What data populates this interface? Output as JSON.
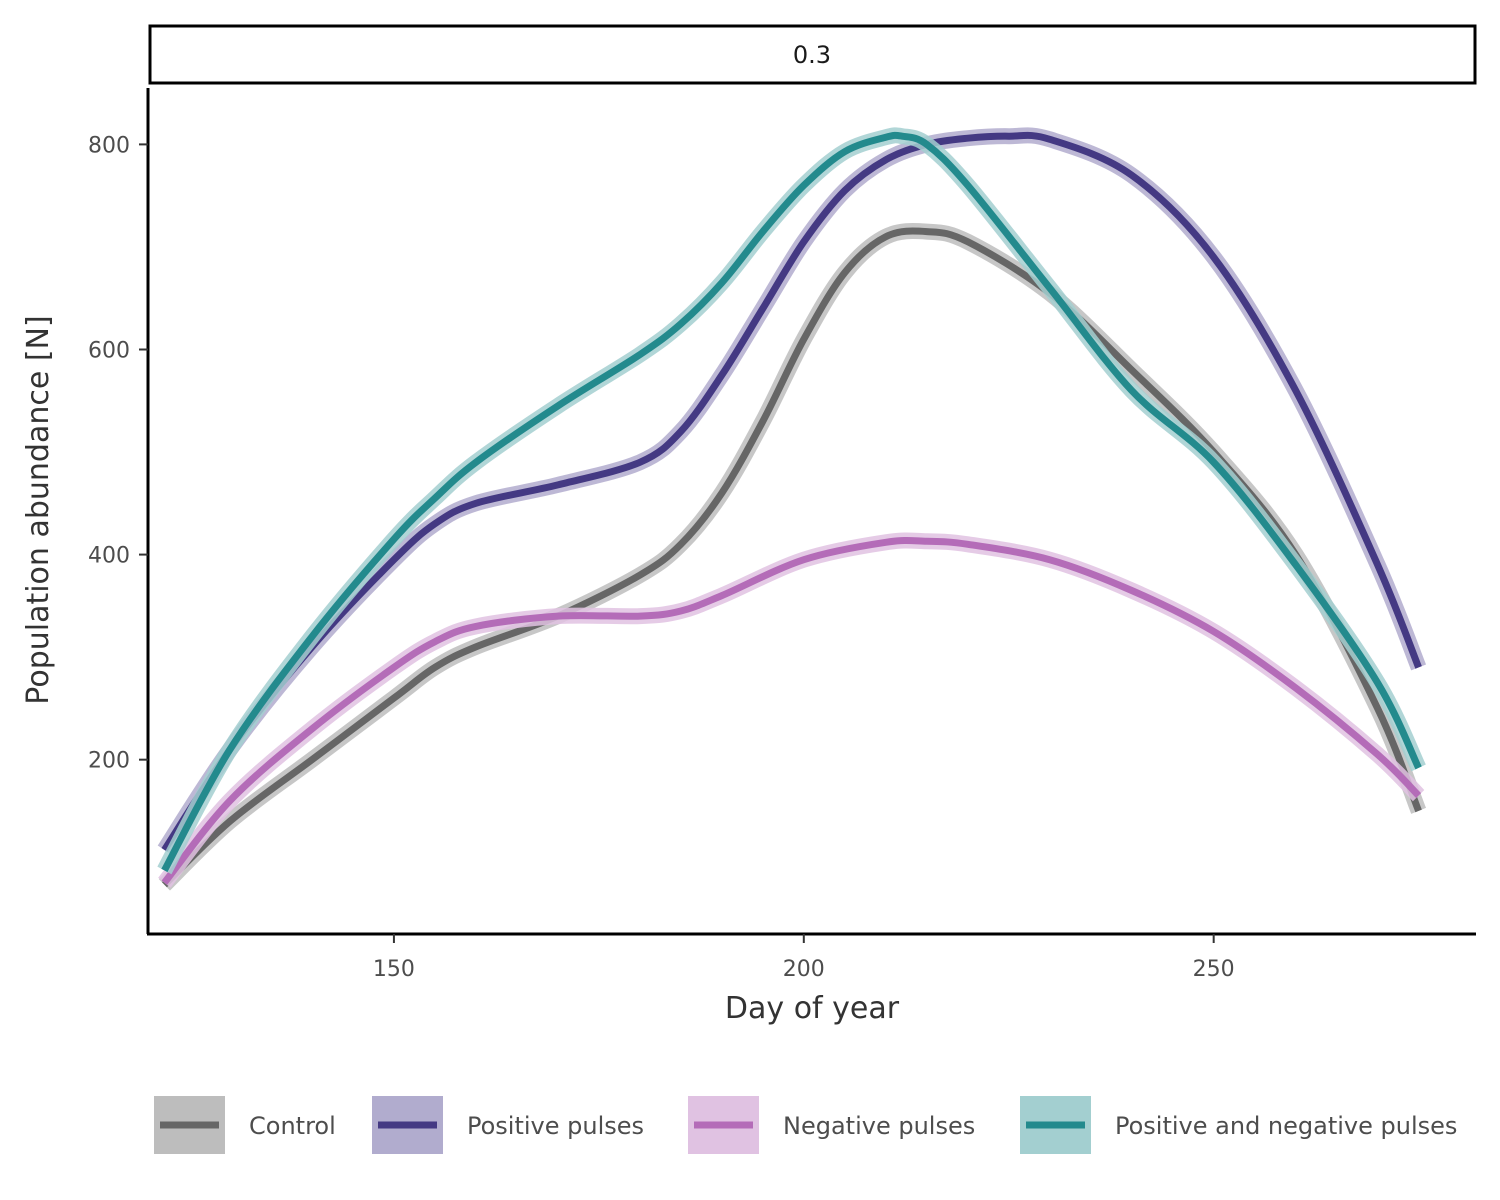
{
  "chart_data": {
    "type": "line",
    "panel_label": "0.3",
    "xlabel": "Day of year",
    "ylabel": "Population abundance [N]",
    "xlim": [
      120,
      282
    ],
    "ylim": [
      30,
      855
    ],
    "x_ticks": [
      150,
      200,
      250
    ],
    "y_ticks": [
      200,
      400,
      600,
      800
    ],
    "grid": false,
    "legend_position": "bottom",
    "series": [
      {
        "name": "Control",
        "color": "#666666",
        "band_color": "#bdbdbd",
        "x": [
          122,
          130,
          140,
          150,
          155,
          160,
          170,
          180,
          185,
          190,
          195,
          200,
          205,
          210,
          215,
          220,
          230,
          240,
          250,
          260,
          270,
          275
        ],
        "y": [
          78,
          140,
          200,
          260,
          290,
          310,
          340,
          380,
          410,
          460,
          530,
          610,
          675,
          710,
          715,
          705,
          655,
          580,
          500,
          400,
          250,
          150
        ]
      },
      {
        "name": "Positive pulses",
        "color": "#443983",
        "band_color": "#b1acce",
        "x": [
          122,
          130,
          140,
          150,
          155,
          160,
          170,
          180,
          185,
          190,
          195,
          200,
          205,
          210,
          215,
          220,
          225,
          230,
          240,
          250,
          260,
          270,
          275
        ],
        "y": [
          112,
          210,
          310,
          395,
          430,
          450,
          468,
          490,
          520,
          575,
          640,
          705,
          755,
          785,
          800,
          806,
          808,
          805,
          770,
          690,
          560,
          390,
          290
        ]
      },
      {
        "name": "Negative pulses",
        "color": "#b46cb8",
        "band_color": "#e0c2e2",
        "x": [
          122,
          130,
          140,
          150,
          155,
          160,
          170,
          180,
          185,
          190,
          200,
          210,
          215,
          220,
          230,
          240,
          250,
          260,
          270,
          275
        ],
        "y": [
          80,
          160,
          230,
          290,
          315,
          330,
          340,
          340,
          345,
          360,
          395,
          412,
          413,
          410,
          395,
          365,
          325,
          270,
          205,
          165
        ]
      },
      {
        "name": "Positive and negative pulses",
        "color": "#238a8d",
        "band_color": "#a3cfd0",
        "x": [
          122,
          130,
          140,
          150,
          155,
          160,
          170,
          180,
          185,
          190,
          195,
          200,
          205,
          210,
          212,
          215,
          220,
          230,
          240,
          250,
          260,
          270,
          275
        ],
        "y": [
          92,
          210,
          320,
          415,
          455,
          490,
          545,
          595,
          625,
          665,
          715,
          760,
          793,
          807,
          808,
          800,
          760,
          660,
          560,
          490,
          390,
          275,
          192
        ]
      }
    ]
  }
}
